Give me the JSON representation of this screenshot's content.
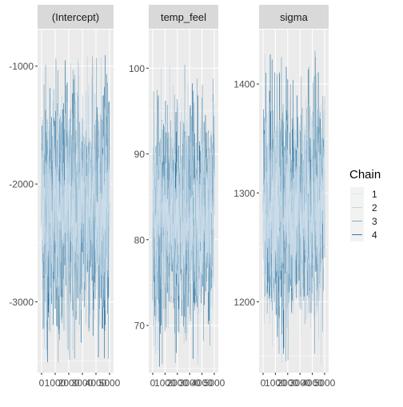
{
  "colors": {
    "panel_bg": "#ebebeb",
    "strip_bg": "#d9d9d9",
    "grid_major": "#ffffff",
    "tick_text": "#4d4d4d",
    "strip_text": "#1a1a1a",
    "trace_colors": [
      "#d1e1ec",
      "#b3cde0",
      "#6497b1",
      "#005b96"
    ]
  },
  "legend": {
    "title": "Chain",
    "items": [
      "1",
      "2",
      "3",
      "4"
    ],
    "placement": "right"
  },
  "chart_data": {
    "type": "line",
    "description_type": "mcmc-trace-plot",
    "x_ticks": [
      0,
      1000,
      2000,
      3000,
      4000,
      5000
    ],
    "x_tick_labels": [
      "0",
      "1000",
      "2000",
      "3000",
      "4000",
      "5000"
    ],
    "xlim": [
      0,
      5000
    ],
    "panels": [
      {
        "title": "(Intercept)",
        "ylim": [
          -3600,
          -690
        ],
        "y_ticks": [
          -3000,
          -2000,
          -1000
        ],
        "y_tick_labels": [
          "-3000",
          "-2000",
          "-1000"
        ],
        "center": -2200,
        "spread": 500,
        "min": -3520,
        "max": -900
      },
      {
        "title": "temp_feel",
        "ylim": [
          64.5,
          104.5
        ],
        "y_ticks": [
          70,
          80,
          90,
          100
        ],
        "y_tick_labels": [
          "70",
          "80",
          "90",
          "100"
        ],
        "center": 82.5,
        "spread": 6,
        "min": 65,
        "max": 101
      },
      {
        "title": "sigma",
        "ylim": [
          1135,
          1450
        ],
        "y_ticks": [
          1200,
          1300,
          1400
        ],
        "y_tick_labels": [
          "1200",
          "1300",
          "1400"
        ],
        "center": 1285,
        "spread": 50,
        "min": 1140,
        "max": 1432
      }
    ]
  }
}
